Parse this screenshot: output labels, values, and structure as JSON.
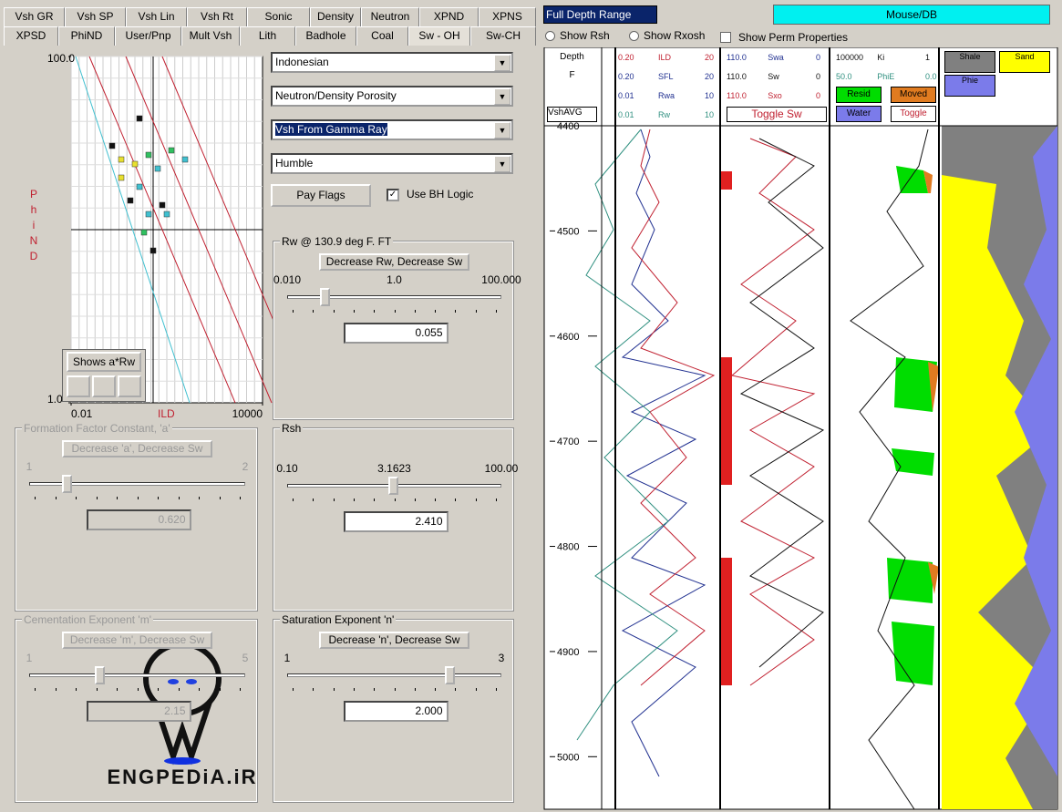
{
  "tabs_row1": [
    "Vsh GR",
    "Vsh SP",
    "Vsh Lin",
    "Vsh Rt",
    "Sonic",
    "Density",
    "Neutron",
    "XPND",
    "XPNS"
  ],
  "tabs_row2": [
    "XPSD",
    "PhiND",
    "User/Pnp",
    "Mult Vsh",
    "Lith",
    "Badhole",
    "Coal",
    "Sw - OH",
    "Sw-CH"
  ],
  "crossplot": {
    "y_label": "PhiND",
    "x_label": "ILD",
    "log": true,
    "xlim": [
      0.01,
      10000
    ],
    "xticks": [
      0.01,
      10000
    ],
    "ylim": [
      1,
      100
    ],
    "yticks": [
      {
        "value": 100,
        "label": "100.0"
      },
      {
        "value": 1,
        "label": "1.0"
      }
    ],
    "button": "Shows a*Rw"
  },
  "dropdowns": [
    "Indonesian",
    "Neutron/Density Porosity",
    "Vsh From Gamma Ray",
    "Humble"
  ],
  "pay_flags": "Pay Flags",
  "use_bh_logic": "Use BH Logic",
  "panels": [
    {
      "title": "Rw @ 130.9 deg F. FT",
      "button": "Decrease Rw, Decrease Sw",
      "scale": [
        "0.010",
        "1.0",
        "100.000"
      ],
      "value": "0.055"
    },
    {
      "title": "Formation Factor Constant, 'a'",
      "button": "Decrease 'a', Decrease Sw",
      "scale": [
        "1",
        "2"
      ],
      "value": "0.620"
    },
    {
      "title": "Rsh",
      "scale": [
        "0.10",
        "3.1623",
        "100.00"
      ],
      "value": "2.410"
    },
    {
      "title": "Cementation Exponent 'm'",
      "button": "Decrease 'm', Decrease Sw",
      "scale": [
        "1",
        "5"
      ],
      "value": "2.15"
    },
    {
      "title": "Saturation Exponent 'n'",
      "button": "Decrease 'n', Decrease Sw",
      "scale": [
        "1",
        "3"
      ],
      "value": "2.000"
    }
  ],
  "range": "Full Depth Range",
  "status": "Mouse/DB",
  "radios": [
    "Show Rsh",
    "Show Rxosh"
  ],
  "perm": "Show Perm Properties",
  "depth_header": [
    "Depth",
    "F",
    "VshAVG"
  ],
  "depth_axis": {
    "ylim": [
      4400,
      5050
    ],
    "yticks": [
      4400,
      4500,
      4600,
      4700,
      4800,
      4900,
      5000
    ]
  },
  "track1": [
    [
      "0.20",
      "ILD",
      "20"
    ],
    [
      "0.20",
      "SFL",
      "20"
    ],
    [
      "0.01",
      "Rwa",
      "10"
    ],
    [
      "0.01",
      "Rw",
      "10"
    ]
  ],
  "track2": [
    [
      "110.0",
      "Swa",
      "0"
    ],
    [
      "110.0",
      "Sw",
      "0"
    ],
    [
      "110.0",
      "Sxo",
      "0"
    ]
  ],
  "toggle_sw": "Toggle Sw",
  "track3": [
    [
      "100000",
      "Ki",
      "1"
    ],
    [
      "50.0",
      "PhiE",
      "0.0"
    ]
  ],
  "track3_legend": [
    "Resid",
    "Moved",
    "Water",
    "Toggle"
  ],
  "track4_legend": [
    "Shale",
    "Sand",
    "Phie"
  ],
  "watermark": "ENGPEDiA.iR"
}
